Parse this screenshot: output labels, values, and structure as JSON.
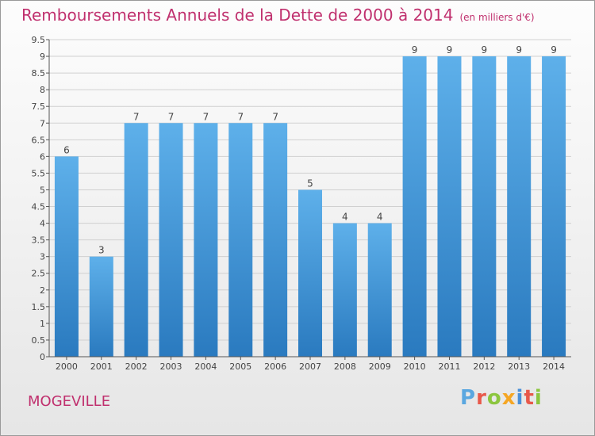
{
  "header": {
    "title": "Remboursements Annuels de la Dette de 2000 à 2014",
    "unit": "(en milliers d'€)"
  },
  "footer": {
    "commune": "MOGEVILLE",
    "logo_text": "Proxiti"
  },
  "colors": {
    "title": "#c0306e",
    "bar_light": "#5eb0ea",
    "bar_dark": "#2a7abf",
    "grid": "#d0d0d0",
    "logo": [
      "#5aa7e0",
      "#e8584a",
      "#8cc63f",
      "#f5a623",
      "#4a90d9",
      "#e8584a",
      "#8cc63f"
    ]
  },
  "chart_data": {
    "type": "bar",
    "title": "Remboursements Annuels de la Dette de 2000 à 2014",
    "xlabel": "",
    "ylabel": "",
    "categories": [
      "2000",
      "2001",
      "2002",
      "2003",
      "2004",
      "2005",
      "2006",
      "2007",
      "2008",
      "2009",
      "2010",
      "2011",
      "2012",
      "2013",
      "2014"
    ],
    "values": [
      6,
      3,
      7,
      7,
      7,
      7,
      7,
      5,
      4,
      4,
      9,
      9,
      9,
      9,
      9
    ],
    "ylim": [
      0,
      9.5
    ],
    "yticks": [
      "0",
      "0.5",
      "1",
      "1.5",
      "2",
      "2.5",
      "3",
      "3.5",
      "4",
      "4.5",
      "5",
      "5.5",
      "6",
      "6.5",
      "7",
      "7.5",
      "8",
      "8.5",
      "9",
      "9.5"
    ],
    "grid": true
  }
}
